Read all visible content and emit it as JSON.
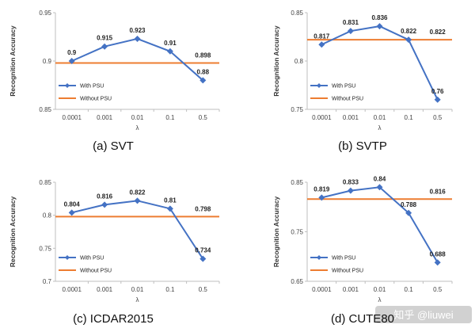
{
  "colors": {
    "with_psu": "#4472C4",
    "without_psu": "#ED7D31",
    "axis": "#BFBFBF",
    "text": "#333333"
  },
  "watermark": "知乎 @liuwei",
  "chart_data": [
    {
      "type": "line",
      "caption": "(a) SVT",
      "xlabel": "λ",
      "ylabel": "Recognition Accuracy",
      "categories": [
        "0.0001",
        "0.001",
        "0.01",
        "0.1",
        "0.5"
      ],
      "ylim": [
        0.85,
        0.95
      ],
      "yticks": [
        "0.85",
        "0.9",
        "0.95"
      ],
      "ytick_values": [
        0.85,
        0.9,
        0.95
      ],
      "legend": "bottom-left",
      "series": [
        {
          "name": "With PSU",
          "values": [
            0.9,
            0.915,
            0.923,
            0.91,
            0.88
          ],
          "labels": [
            "0.9",
            "0.915",
            "0.923",
            "0.91",
            "0.88"
          ]
        },
        {
          "name": "Without PSU",
          "values": [
            0.898,
            0.898,
            0.898,
            0.898,
            0.898
          ],
          "labels": [
            "0.898"
          ]
        }
      ]
    },
    {
      "type": "line",
      "caption": "(b) SVTP",
      "xlabel": "λ",
      "ylabel": "Recognition Accuracy",
      "categories": [
        "0.0001",
        "0.001",
        "0.01",
        "0.1",
        "0.5"
      ],
      "ylim": [
        0.75,
        0.85
      ],
      "yticks": [
        "0.75",
        "0.8",
        "0.85"
      ],
      "ytick_values": [
        0.75,
        0.8,
        0.85
      ],
      "legend": "bottom-left",
      "series": [
        {
          "name": "With PSU",
          "values": [
            0.817,
            0.831,
            0.836,
            0.822,
            0.76
          ],
          "labels": [
            "0.817",
            "0.831",
            "0.836",
            "0.822",
            "0.76"
          ]
        },
        {
          "name": "Without PSU",
          "values": [
            0.822,
            0.822,
            0.822,
            0.822,
            0.822
          ],
          "labels": [
            "0.822"
          ]
        }
      ]
    },
    {
      "type": "line",
      "caption": "(c) ICDAR2015",
      "xlabel": "λ",
      "ylabel": "Recognition Accuracy",
      "categories": [
        "0.0001",
        "0.001",
        "0.01",
        "0.1",
        "0.5"
      ],
      "ylim": [
        0.7,
        0.85
      ],
      "yticks": [
        "0.7",
        "0.75",
        "0.8",
        "0.85"
      ],
      "ytick_values": [
        0.7,
        0.75,
        0.8,
        0.85
      ],
      "legend": "bottom-left",
      "series": [
        {
          "name": "With PSU",
          "values": [
            0.804,
            0.816,
            0.822,
            0.81,
            0.734
          ],
          "labels": [
            "0.804",
            "0.816",
            "0.822",
            "0.81",
            "0.734"
          ]
        },
        {
          "name": "Without PSU",
          "values": [
            0.798,
            0.798,
            0.798,
            0.798,
            0.798
          ],
          "labels": [
            "0.798"
          ]
        }
      ]
    },
    {
      "type": "line",
      "caption": "(d) CUTE80",
      "xlabel": "λ",
      "ylabel": "Recognition Accuracy",
      "categories": [
        "0.0001",
        "0.001",
        "0.01",
        "0.1",
        "0.5"
      ],
      "ylim": [
        0.65,
        0.85
      ],
      "yticks": [
        "0.65",
        "0.75",
        "0.85"
      ],
      "ytick_values": [
        0.65,
        0.75,
        0.85
      ],
      "legend": "bottom-left",
      "series": [
        {
          "name": "With PSU",
          "values": [
            0.819,
            0.833,
            0.84,
            0.788,
            0.688
          ],
          "labels": [
            "0.819",
            "0.833",
            "0.84",
            "0.788",
            "0.688"
          ]
        },
        {
          "name": "Without PSU",
          "values": [
            0.816,
            0.816,
            0.816,
            0.816,
            0.816
          ],
          "labels": [
            "0.816"
          ]
        }
      ]
    }
  ]
}
